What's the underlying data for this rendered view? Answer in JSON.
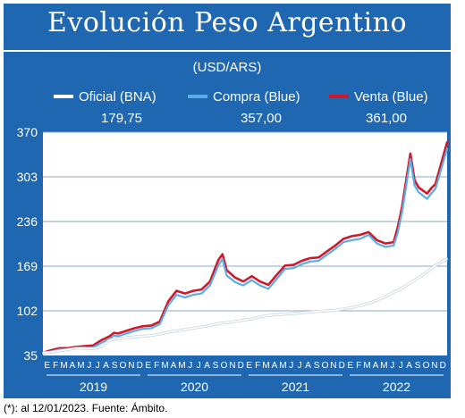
{
  "title": "Evolución Peso Argentino",
  "unit": "(USD/ARS)",
  "note": "(*): al 12/01/2023. Fuente: Ámbito.",
  "legend": [
    {
      "name": "Oficial (BNA)",
      "value": "179,75",
      "color": "#ffffff"
    },
    {
      "name": "Compra (Blue)",
      "value": "357,00",
      "color": "#5aaee6"
    },
    {
      "name": "Venta (Blue)",
      "value": "361,00",
      "color": "#d1182a"
    }
  ],
  "colors": {
    "panel": "#1f67b1",
    "plot_bg": "#ffffff",
    "grid": "#8aa8cf",
    "oficial": "#ffffff",
    "compra": "#5aaee6",
    "venta": "#d1182a"
  },
  "chart_data": {
    "type": "line",
    "x_unit": "months since Jan 2019",
    "ylim": [
      35,
      370
    ],
    "y_ticks": [
      35,
      102,
      169,
      236,
      303,
      370
    ],
    "y_tick_labels": [
      "35",
      "102",
      "169",
      "236",
      "303",
      "370"
    ],
    "month_labels": [
      "E",
      "F",
      "M",
      "A",
      "M",
      "J",
      "J",
      "A",
      "S",
      "O",
      "N",
      "D",
      "E",
      "F",
      "M",
      "A",
      "M",
      "J",
      "J",
      "A",
      "S",
      "O",
      "N",
      "D",
      "E",
      "F",
      "M",
      "A",
      "M",
      "J",
      "J",
      "A",
      "S",
      "O",
      "N",
      "D",
      "E",
      "F",
      "M",
      "A",
      "M",
      "J",
      "J",
      "A",
      "S",
      "O",
      "N",
      "D"
    ],
    "year_labels": [
      "2019",
      "2020",
      "2021",
      "2022"
    ],
    "series": [
      {
        "name": "Oficial (BNA)",
        "x": [
          0,
          1,
          2,
          3,
          4,
          5,
          6,
          7,
          8,
          9,
          10,
          11,
          12,
          13,
          14,
          15,
          16,
          17,
          18,
          19,
          20,
          21,
          22,
          23,
          24,
          25,
          26,
          27,
          28,
          29,
          30,
          31,
          32,
          33,
          34,
          35,
          36,
          37,
          38,
          39,
          40,
          41,
          42,
          43,
          44,
          45,
          46,
          47,
          48.4
        ],
        "y": [
          39,
          40,
          42,
          44,
          46,
          46,
          45,
          48,
          58,
          60,
          62,
          63,
          64,
          65,
          67,
          70,
          72,
          74,
          76,
          78,
          80,
          83,
          84,
          86,
          88,
          90,
          93,
          95,
          96,
          97,
          98,
          99,
          100,
          101,
          102,
          103,
          105,
          107,
          110,
          113,
          118,
          123,
          130,
          136,
          144,
          152,
          160,
          170,
          180
        ]
      },
      {
        "name": "Compra (Blue)",
        "x": [
          0,
          1,
          2,
          3,
          4,
          5,
          6,
          7,
          8,
          8.5,
          9,
          10,
          11,
          12,
          13,
          14,
          15,
          16,
          17,
          18,
          19,
          20,
          21,
          21.5,
          22,
          23,
          24,
          25,
          26,
          27,
          28,
          29,
          30,
          31,
          32,
          33,
          34,
          35,
          36,
          37,
          38,
          39,
          40,
          41,
          42,
          42.5,
          43,
          44,
          44.5,
          45,
          46,
          46.5,
          47,
          48.4
        ],
        "y": [
          38,
          41,
          44,
          44,
          46,
          46,
          47,
          54,
          60,
          65,
          64,
          68,
          72,
          75,
          76,
          82,
          110,
          126,
          122,
          126,
          128,
          140,
          170,
          180,
          155,
          145,
          140,
          148,
          140,
          135,
          150,
          165,
          166,
          172,
          176,
          177,
          186,
          195,
          205,
          208,
          210,
          216,
          203,
          198,
          200,
          220,
          250,
          330,
          290,
          280,
          270,
          278,
          285,
          345
        ]
      },
      {
        "name": "Venta (Blue)",
        "x": [
          0,
          1,
          2,
          3,
          4,
          5,
          6,
          7,
          8,
          8.5,
          9,
          10,
          11,
          12,
          13,
          14,
          15,
          16,
          17,
          18,
          19,
          20,
          21,
          21.5,
          22,
          23,
          24,
          25,
          26,
          27,
          28,
          29,
          30,
          31,
          32,
          33,
          34,
          35,
          36,
          37,
          38,
          39,
          40,
          41,
          42,
          42.5,
          43,
          44,
          44.5,
          45,
          46,
          46.5,
          47,
          48.4
        ],
        "y": [
          39,
          43,
          46,
          46,
          48,
          49,
          50,
          58,
          64,
          69,
          68,
          72,
          76,
          79,
          80,
          86,
          116,
          132,
          128,
          132,
          134,
          146,
          178,
          187,
          163,
          152,
          146,
          154,
          146,
          141,
          156,
          170,
          171,
          177,
          181,
          182,
          191,
          200,
          210,
          214,
          216,
          220,
          208,
          203,
          205,
          228,
          258,
          338,
          298,
          287,
          278,
          286,
          292,
          355
        ]
      }
    ]
  }
}
